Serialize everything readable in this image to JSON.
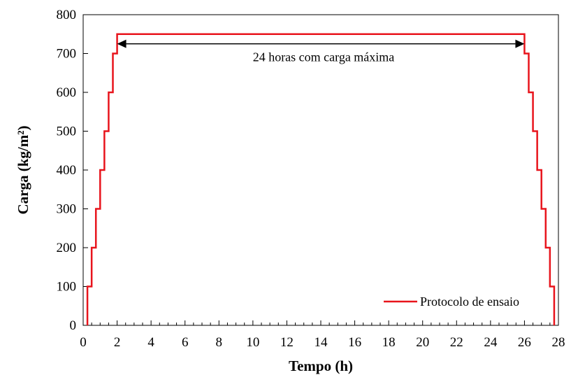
{
  "chart_data": {
    "type": "line",
    "xlabel": "Tempo (h)",
    "ylabel": "Carga (kg/m²)",
    "xlim": [
      0,
      28
    ],
    "ylim": [
      0,
      800
    ],
    "x_ticks": [
      0,
      2,
      4,
      6,
      8,
      10,
      12,
      14,
      16,
      18,
      20,
      22,
      24,
      26,
      28
    ],
    "y_ticks": [
      0,
      100,
      200,
      300,
      400,
      500,
      600,
      700,
      800
    ],
    "x_minor_step": 0.5,
    "grid": false,
    "legend_position": "bottom-right",
    "series": [
      {
        "name": "Protocolo de ensaio",
        "color": "#e8141c",
        "x": [
          0.25,
          0.25,
          0.5,
          0.5,
          0.75,
          0.75,
          1.0,
          1.0,
          1.25,
          1.25,
          1.5,
          1.5,
          1.75,
          1.75,
          2.0,
          2.0,
          26.0,
          26.0,
          26.25,
          26.25,
          26.5,
          26.5,
          26.75,
          26.75,
          27.0,
          27.0,
          27.25,
          27.25,
          27.5,
          27.5,
          27.75,
          27.75
        ],
        "y": [
          0,
          100,
          100,
          200,
          200,
          300,
          300,
          400,
          400,
          500,
          500,
          600,
          600,
          700,
          700,
          750,
          750,
          700,
          700,
          600,
          600,
          500,
          500,
          400,
          400,
          300,
          300,
          200,
          200,
          100,
          100,
          0
        ]
      }
    ],
    "annotations": [
      {
        "text": "24 horas com carga máxima",
        "x_start": 2.0,
        "x_end": 26.0,
        "y": 725
      }
    ]
  }
}
